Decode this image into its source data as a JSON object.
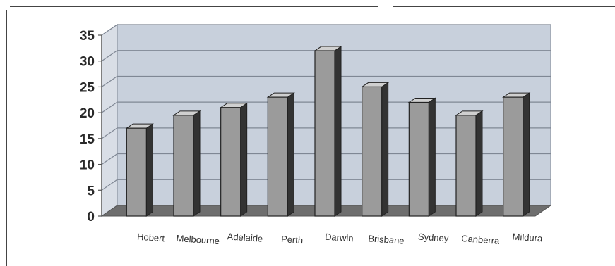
{
  "colors": {
    "wall": "#c8d0dc",
    "wall_grid": "#7f8794",
    "floor": "#6e6e6e",
    "floor_top": "#8c8c8c",
    "bar_front": "#9b9b9b",
    "bar_top": "#d0d0d0",
    "bar_side": "#333333",
    "border_dark": "#444444",
    "text": "#2a2a2a"
  },
  "chart_data": {
    "type": "bar",
    "title": "",
    "xlabel": "",
    "ylabel": "",
    "categories": [
      "Hobert",
      "Melbourne",
      "Adelaide",
      "Perth",
      "Darwin",
      "Brisbane",
      "Sydney",
      "Canberra",
      "Mildura"
    ],
    "values": [
      17,
      19.5,
      21,
      23,
      32,
      25,
      22,
      19.5,
      23
    ],
    "ylim": [
      0,
      35
    ],
    "yticks": [
      0,
      5,
      10,
      15,
      20,
      25,
      30,
      35
    ],
    "grid": true,
    "style": "3d-bar"
  }
}
